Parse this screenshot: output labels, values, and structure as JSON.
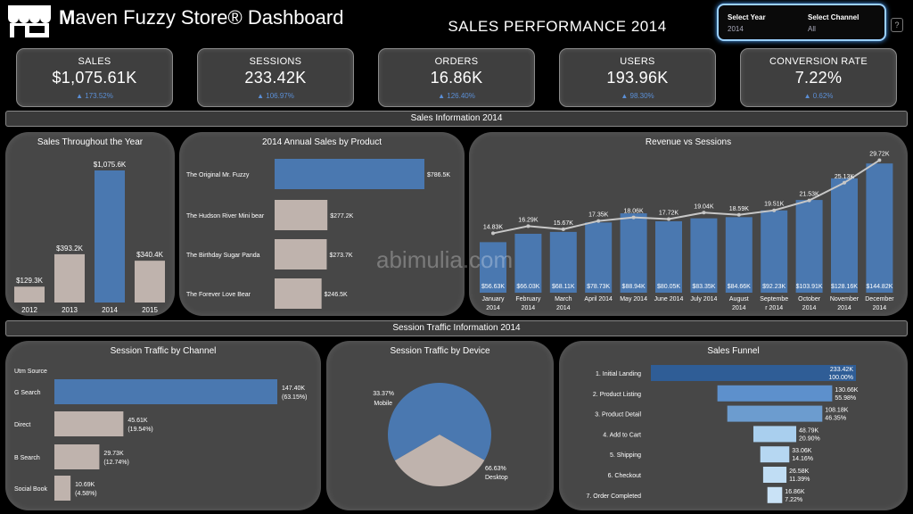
{
  "header": {
    "logo": "store-icon",
    "title_initial": "M",
    "title_rest": "aven Fuzzy Store® Dashboard",
    "page_title": "SALES PERFORMANCE  2014",
    "filters": {
      "year_label": "Select Year",
      "year_value": "2014",
      "channel_label": "Select Channel",
      "channel_value": "All"
    },
    "help_label": "?"
  },
  "kpis": [
    {
      "label": "SALES",
      "value": "$1,075.61K",
      "delta": "▲ 173.52%"
    },
    {
      "label": "SESSIONS",
      "value": "233.42K",
      "delta": "▲ 106.97%"
    },
    {
      "label": "ORDERS",
      "value": "16.86K",
      "delta": "▲ 126.40%"
    },
    {
      "label": "USERS",
      "value": "193.96K",
      "delta": "▲ 98.30%"
    },
    {
      "label": "CONVERSION RATE",
      "value": "7.22%",
      "delta": "▲ 0.62%"
    }
  ],
  "sections": {
    "sales_info": "Sales Information 2014",
    "traffic_info": "Session Traffic Information 2014"
  },
  "watermark": "abimulia.com",
  "colors": {
    "blue": "#4a78b0",
    "beige": "#bfb3ad",
    "line": "#c7c7c7"
  },
  "chart_data": [
    {
      "id": "sales_year",
      "type": "bar",
      "title": "Sales Throughout the Year",
      "categories": [
        "2012",
        "2013",
        "2014",
        "2015"
      ],
      "values": [
        129.3,
        393.2,
        1075.6,
        340.4
      ],
      "labels": [
        "$129.3K",
        "$393.2K",
        "$1,075.6K",
        "$340.4K"
      ],
      "highlight": "2014"
    },
    {
      "id": "product_sales",
      "type": "bar",
      "orientation": "horizontal",
      "title": "2014 Annual Sales by Product",
      "categories": [
        "The Original Mr. Fuzzy",
        "The Hudson River Mini bear",
        "The Birthday Sugar Panda",
        "The Forever Love Bear"
      ],
      "values": [
        786.5,
        277.2,
        273.7,
        246.5
      ],
      "labels": [
        "$786.5K",
        "$277.2K",
        "$273.7K",
        "$246.5K"
      ]
    },
    {
      "id": "rev_sessions",
      "type": "bar+line",
      "title": "Revenue vs Sessions",
      "categories": [
        "January 2014",
        "February 2014",
        "March 2014",
        "April 2014",
        "May 2014",
        "June 2014",
        "July 2014",
        "August 2014",
        "September 2014",
        "October 2014",
        "November 2014",
        "December 2014"
      ],
      "x_tick_lines": [
        [
          "January",
          "2014"
        ],
        [
          "February",
          "2014"
        ],
        [
          "March",
          "2014"
        ],
        [
          "April 2014"
        ],
        [
          "May 2014"
        ],
        [
          "June 2014"
        ],
        [
          "July 2014"
        ],
        [
          "August",
          "2014"
        ],
        [
          "Septembe",
          "r 2014"
        ],
        [
          "October",
          "2014"
        ],
        [
          "November",
          "2014"
        ],
        [
          "December",
          "2014"
        ]
      ],
      "revenue": [
        56.63,
        66.03,
        68.11,
        78.73,
        88.94,
        80.05,
        83.35,
        84.66,
        92.23,
        103.91,
        128.16,
        144.82
      ],
      "revenue_labels": [
        "$56.63K",
        "$66.03K",
        "$68.11K",
        "$78.73K",
        "$88.94K",
        "$80.05K",
        "$83.35K",
        "$84.66K",
        "$92.23K",
        "$103.91K",
        "$128.16K",
        "$144.82K"
      ],
      "sessions": [
        14.83,
        16.29,
        15.67,
        17.35,
        18.06,
        17.72,
        19.04,
        18.59,
        19.51,
        21.53,
        25.13,
        29.72
      ],
      "session_labels": [
        "14.83K",
        "16.29K",
        "15.67K",
        "17.35K",
        "18.06K",
        "17.72K",
        "19.04K",
        "18.59K",
        "19.51K",
        "21.53K",
        "25.13K",
        "29.72K"
      ]
    },
    {
      "id": "traffic_channel",
      "type": "bar",
      "orientation": "horizontal",
      "title": "Session Traffic by Channel",
      "header": "Utm Source",
      "categories": [
        "G Search",
        "Direct",
        "B Search",
        "Social Book"
      ],
      "values": [
        147.4,
        45.61,
        29.73,
        10.69
      ],
      "labels": [
        "147.40K",
        "45.61K",
        "29.73K",
        "10.69K"
      ],
      "percents": [
        "(63.15%)",
        "(19.54%)",
        "(12.74%)",
        "(4.58%)"
      ]
    },
    {
      "id": "traffic_device",
      "type": "pie",
      "title": "Session Traffic by Device",
      "categories": [
        "Desktop",
        "Mobile"
      ],
      "values": [
        66.63,
        33.37
      ],
      "labels": [
        "66.63%",
        "33.37%"
      ]
    },
    {
      "id": "funnel",
      "type": "bar",
      "orientation": "horizontal-funnel",
      "title": "Sales Funnel",
      "categories": [
        "1. Initial Landing",
        "2. Product Listing",
        "3. Product Detail",
        "4. Add to Cart",
        "5. Shipping",
        "6. Checkout",
        "7. Order Completed"
      ],
      "values": [
        233.42,
        130.66,
        108.18,
        48.79,
        33.06,
        26.58,
        16.86
      ],
      "labels": [
        "233.42K",
        "130.66K",
        "108.18K",
        "48.79K",
        "33.06K",
        "26.58K",
        "16.86K"
      ],
      "percents": [
        "100.00%",
        "55.98%",
        "46.35%",
        "20.90%",
        "14.16%",
        "11.39%",
        "7.22%"
      ],
      "colors": [
        "#2f5d96",
        "#5d90cc",
        "#6c9ccf",
        "#a9cfee",
        "#b6d7f2",
        "#c0ddf4",
        "#c9e2f6"
      ]
    }
  ]
}
